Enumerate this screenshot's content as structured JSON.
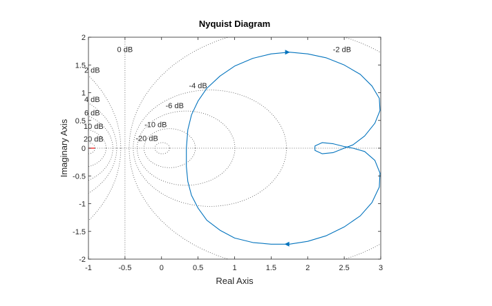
{
  "chart_data": {
    "type": "line",
    "title": "Nyquist Diagram",
    "xlabel": "Real Axis",
    "ylabel": "Imaginary Axis",
    "xlim": [
      -1,
      3
    ],
    "ylim": [
      -2,
      2
    ],
    "xticks": [
      -1,
      -0.5,
      0,
      0.5,
      1,
      1.5,
      2,
      2.5,
      3
    ],
    "xtick_labels": [
      "-1",
      "-0.5",
      "0",
      "0.5",
      "1",
      "1.5",
      "2",
      "2.5",
      "3"
    ],
    "yticks": [
      -2,
      -1.5,
      -1,
      -0.5,
      0,
      0.5,
      1,
      1.5,
      2
    ],
    "ytick_labels": [
      "-2",
      "-1.5",
      "-1",
      "-0.5",
      "0",
      "0.5",
      "1",
      "1.5",
      "2"
    ],
    "grid": "M-circles (constant closed-loop dB)",
    "m_circles_db": [
      -20,
      -10,
      -6,
      -4,
      -2,
      0,
      2,
      4,
      6,
      10,
      20
    ],
    "db_labels": [
      {
        "text": "0 dB",
        "x": -0.5,
        "y": 1.78
      },
      {
        "text": "2 dB",
        "x": -0.95,
        "y": 1.41
      },
      {
        "text": "4 dB",
        "x": -0.95,
        "y": 0.88
      },
      {
        "text": "6 dB",
        "x": -0.95,
        "y": 0.64
      },
      {
        "text": "10 dB",
        "x": -0.93,
        "y": 0.4
      },
      {
        "text": "20 dB",
        "x": -0.93,
        "y": 0.17
      },
      {
        "text": "-2 dB",
        "x": 2.47,
        "y": 1.78
      },
      {
        "text": "-4 dB",
        "x": 0.5,
        "y": 1.13
      },
      {
        "text": "-6 dB",
        "x": 0.18,
        "y": 0.77
      },
      {
        "text": "-10 dB",
        "x": -0.08,
        "y": 0.43
      },
      {
        "text": "-20 dB",
        "x": -0.2,
        "y": 0.18
      }
    ],
    "critical_point": {
      "x": -1,
      "y": 0,
      "color": "#ff0000"
    },
    "series": [
      {
        "color": "#0072bd",
        "x": [
          2.5,
          2.62,
          2.78,
          2.92,
          2.99,
          2.98,
          2.88,
          2.72,
          2.5,
          2.25,
          2.0,
          1.75,
          1.5,
          1.25,
          1.0,
          0.8,
          0.62,
          0.5,
          0.41,
          0.36,
          0.34,
          0.34,
          0.36,
          0.41,
          0.5,
          0.62,
          0.8,
          1.0,
          1.25,
          1.5,
          1.75,
          2.0,
          2.25,
          2.5,
          2.72,
          2.88,
          2.98,
          2.99,
          2.92,
          2.78,
          2.62,
          2.5,
          2.35,
          2.2,
          2.1,
          2.1,
          2.2,
          2.35,
          2.5
        ],
        "y": [
          0.0,
          0.06,
          0.22,
          0.45,
          0.68,
          0.9,
          1.12,
          1.33,
          1.5,
          1.63,
          1.7,
          1.73,
          1.7,
          1.62,
          1.48,
          1.3,
          1.08,
          0.85,
          0.6,
          0.33,
          0.0,
          -0.33,
          -0.6,
          -0.85,
          -1.08,
          -1.3,
          -1.48,
          -1.62,
          -1.7,
          -1.73,
          -1.73,
          -1.68,
          -1.58,
          -1.42,
          -1.22,
          -0.98,
          -0.7,
          -0.45,
          -0.22,
          -0.06,
          0.0,
          0.03,
          0.08,
          0.1,
          0.04,
          -0.04,
          -0.1,
          -0.08,
          0.0
        ]
      }
    ],
    "arrows": [
      {
        "x": 1.72,
        "y": 1.73,
        "dir": "right"
      },
      {
        "x": 1.72,
        "y": -1.73,
        "dir": "left"
      }
    ]
  }
}
